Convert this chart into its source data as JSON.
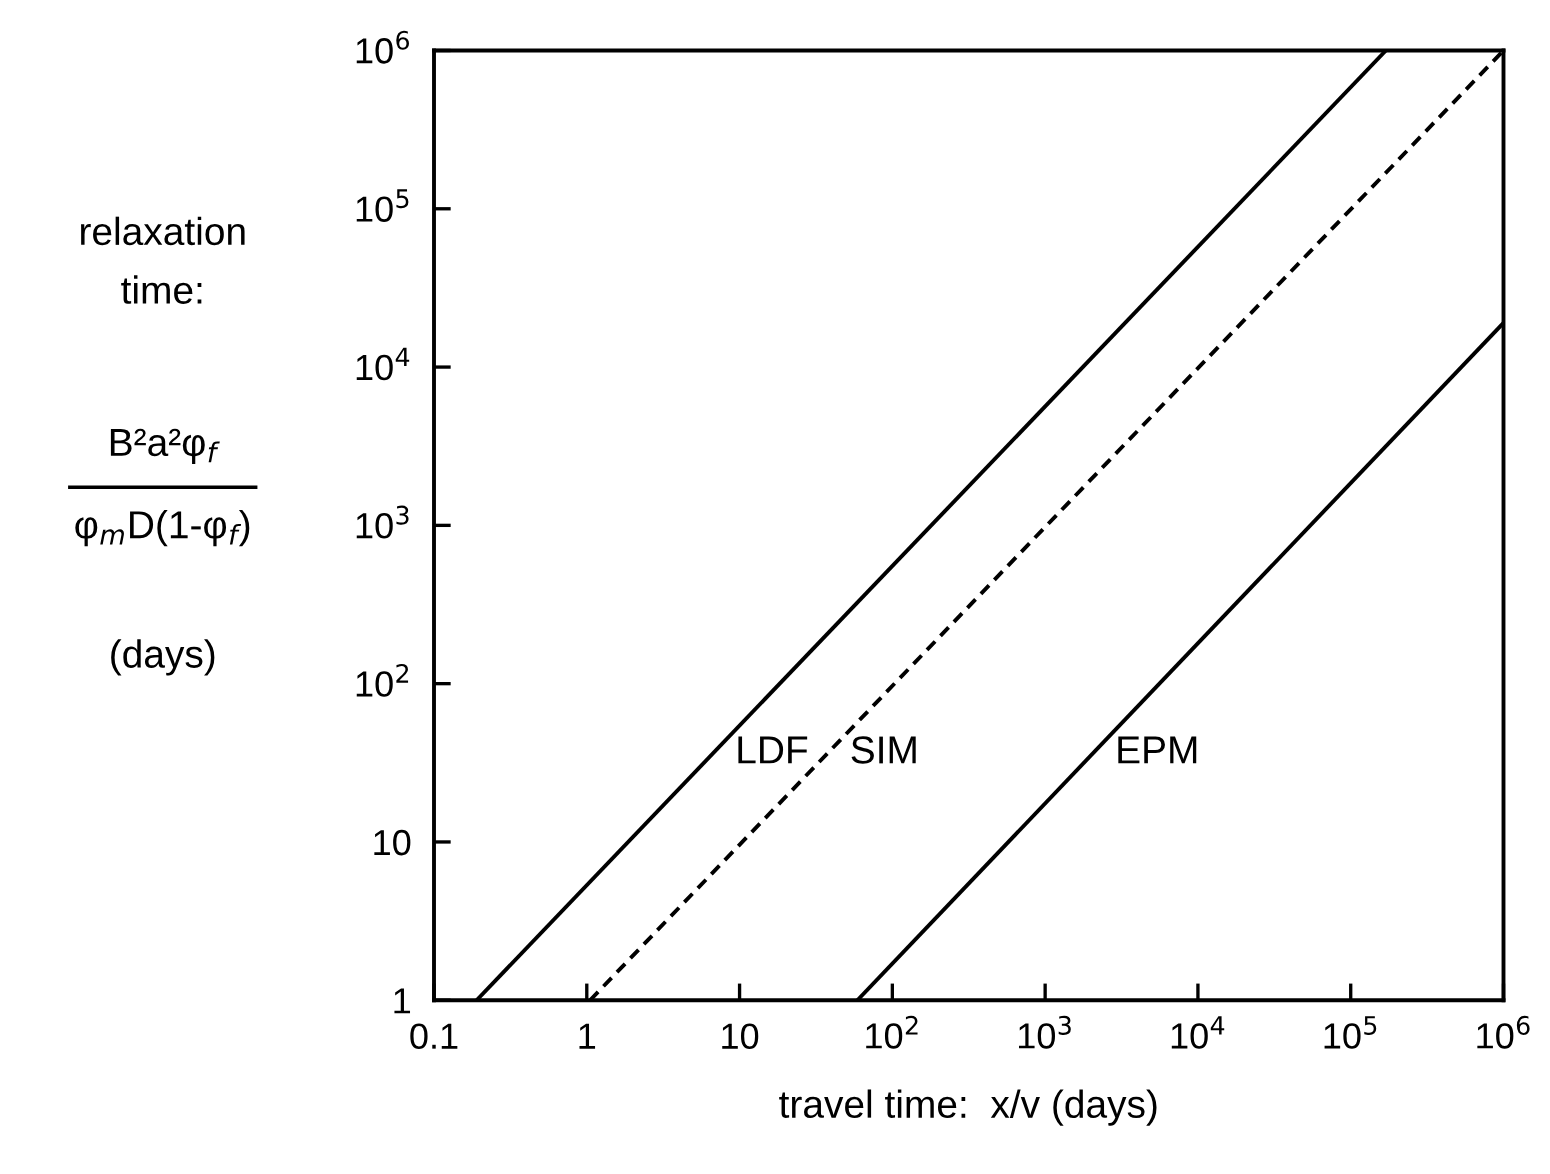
{
  "chart_data": {
    "type": "line",
    "xlabel": "travel time:  x/v (days)",
    "ylabel": "relaxation\ntime:\nB²a²φ$_{f}$\nφ$_{m}$D(1-φ$_{f}$)\n(days)",
    "log": "xy",
    "xlim": [
      0.1,
      1000000
    ],
    "ylim": [
      1,
      1000000
    ],
    "xticks": [
      0.1,
      1,
      10,
      {
        "value": 100,
        "label": "10$^{2}$"
      },
      {
        "value": 1000,
        "label": "10$^{3}$"
      },
      {
        "value": 10000,
        "label": "10$^{4}$"
      },
      {
        "value": 100000,
        "label": "10$^{5}$"
      },
      {
        "value": 1000000,
        "label": "10$^{6}$"
      }
    ],
    "yticks": [
      1,
      10,
      {
        "value": 100,
        "label": "10$^{2}$"
      },
      {
        "value": 1000,
        "label": "10$^{3}$"
      },
      {
        "value": 10000,
        "label": "10$^{4}$"
      },
      {
        "value": 100000,
        "label": "10$^{5}$"
      },
      {
        "value": 1000000,
        "label": "10$^{6}$"
      }
    ],
    "grid": false,
    "legend": false,
    "marker": "none",
    "series": [
      {
        "name": "LDF",
        "color": "#000000",
        "line_style": "solid",
        "x": [
          0.19,
          170000
        ],
        "values": [
          1,
          1000000
        ]
      },
      {
        "name": "SIM",
        "color": "#000000",
        "line_style": "dashed",
        "x": [
          1.05,
          1000000
        ],
        "values": [
          1,
          1000000
        ]
      },
      {
        "name": "EPM",
        "color": "#000000",
        "line_style": "solid",
        "x": [
          59,
          1000000
        ],
        "values": [
          1,
          19000
        ]
      }
    ]
  }
}
